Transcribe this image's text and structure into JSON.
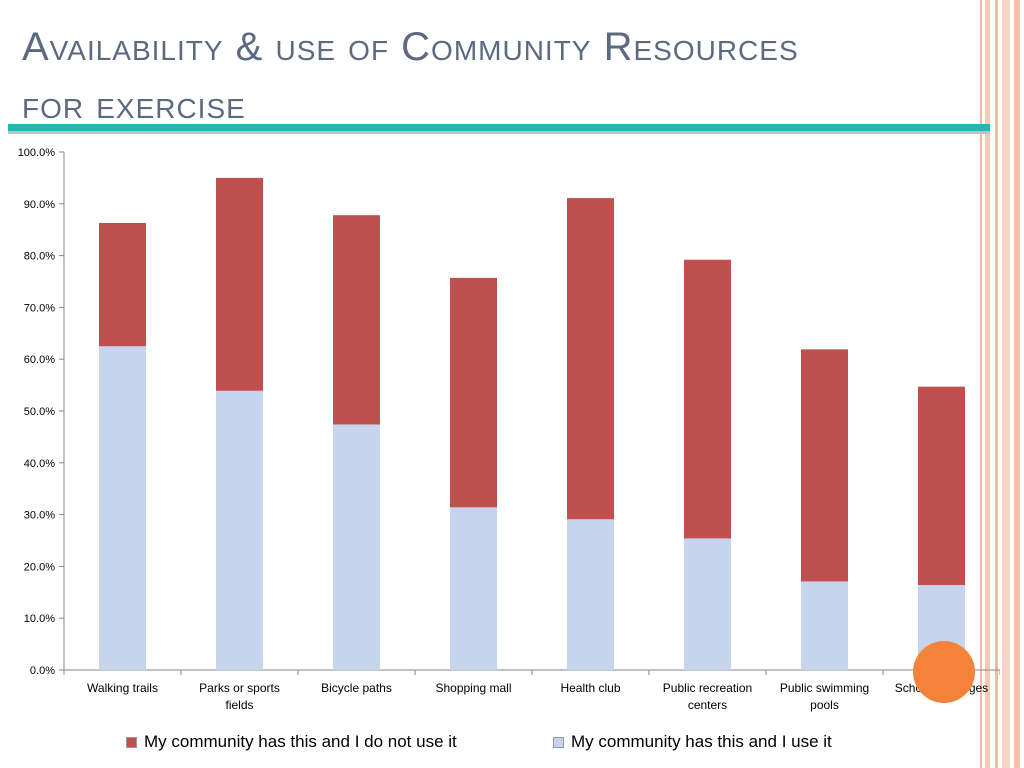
{
  "title": {
    "line1": "Availability & use of Community Resources",
    "line2": "for exercise"
  },
  "colors": {
    "title_text": "#5b6a80",
    "rule": "#2bb5b0",
    "use": "#c7d4ed",
    "not_use": "#c0504d",
    "highlight": "#f5823a"
  },
  "chart_data": {
    "type": "bar",
    "stacked": true,
    "categories": [
      "Walking trails",
      "Parks or sports fields",
      "Bicycle paths",
      "Shopping mall",
      "Health club",
      "Public recreation centers",
      "Public swimming pools",
      "Schools, colleges"
    ],
    "series": [
      {
        "name": "My community has this and I use it",
        "color": "#c7d4ed",
        "values": [
          62.5,
          53.9,
          47.4,
          31.4,
          29.1,
          25.4,
          17.1,
          16.4
        ]
      },
      {
        "name": "My community has this and I do not use it",
        "color": "#c0504d",
        "values": [
          23.8,
          41.1,
          40.4,
          44.3,
          62.0,
          53.8,
          44.8,
          38.3
        ]
      }
    ],
    "ylim": [
      0,
      100
    ],
    "yticks": [
      "0.0%",
      "10.0%",
      "20.0%",
      "30.0%",
      "40.0%",
      "50.0%",
      "60.0%",
      "70.0%",
      "80.0%",
      "90.0%",
      "100.0%"
    ],
    "xlabel": "",
    "ylabel": "",
    "grid": false,
    "legend_position": "bottom"
  },
  "legend": {
    "not_use_label": "My community has this and I do not use it",
    "use_label": "My community has this and I use it"
  }
}
